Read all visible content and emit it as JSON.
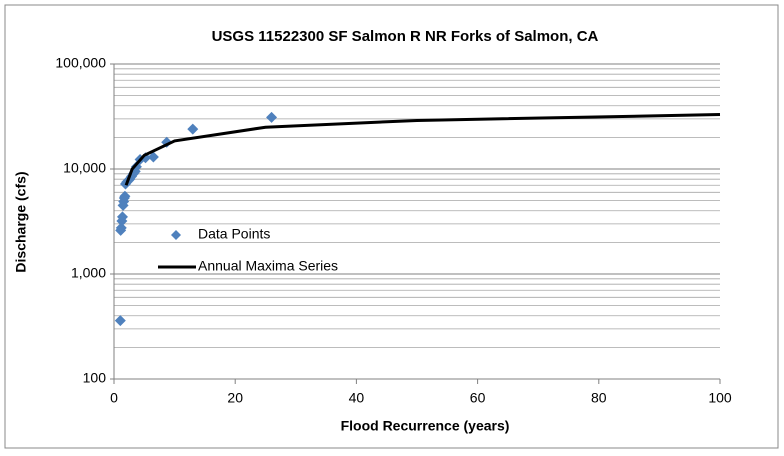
{
  "chart_data": {
    "type": "scatter-line",
    "title": "USGS 11522300 SF Salmon R NR Forks of Salmon, CA",
    "xlabel": "Flood Recurrence (years)",
    "ylabel": "Discharge (cfs)",
    "xlim": [
      0,
      100
    ],
    "xticks": [
      0,
      20,
      40,
      60,
      80,
      100
    ],
    "ylim": [
      100,
      100000
    ],
    "yticks": [
      100,
      {
        "value": 1000,
        "label": "1,000"
      },
      {
        "value": 10000,
        "label": "10,000"
      },
      {
        "value": 100000,
        "label": "100,000"
      }
    ],
    "yminor_ticks": [
      200,
      300,
      400,
      500,
      600,
      700,
      800,
      900,
      2000,
      3000,
      4000,
      5000,
      6000,
      7000,
      8000,
      9000,
      20000,
      30000,
      40000,
      50000,
      60000,
      70000,
      80000,
      90000
    ],
    "ylog": true,
    "grid": true,
    "legend": "center-left",
    "series": [
      {
        "name": "Data Points",
        "mode": "markers",
        "color": "#4f81bd",
        "x": [
          1.04,
          1.1,
          1.2,
          1.3,
          1.4,
          1.5,
          1.6,
          1.7,
          1.8,
          1.9,
          2.1,
          2.4,
          2.6,
          2.9,
          3.2,
          3.5,
          3.7,
          4.3,
          5.2,
          6.5,
          8.7,
          13,
          26
        ],
        "values": [
          360,
          2600,
          2750,
          3200,
          3500,
          4500,
          4900,
          5300,
          5500,
          7200,
          7500,
          7800,
          8000,
          8500,
          9000,
          9500,
          10500,
          12300,
          12800,
          13000,
          18000,
          24000,
          31000
        ]
      },
      {
        "name": "Annual Maxima Series",
        "mode": "line",
        "color": "#000000",
        "x": [
          2,
          3,
          5,
          10,
          25,
          50,
          100
        ],
        "values": [
          7000,
          10000,
          13500,
          18500,
          25000,
          29000,
          33000
        ]
      }
    ]
  }
}
